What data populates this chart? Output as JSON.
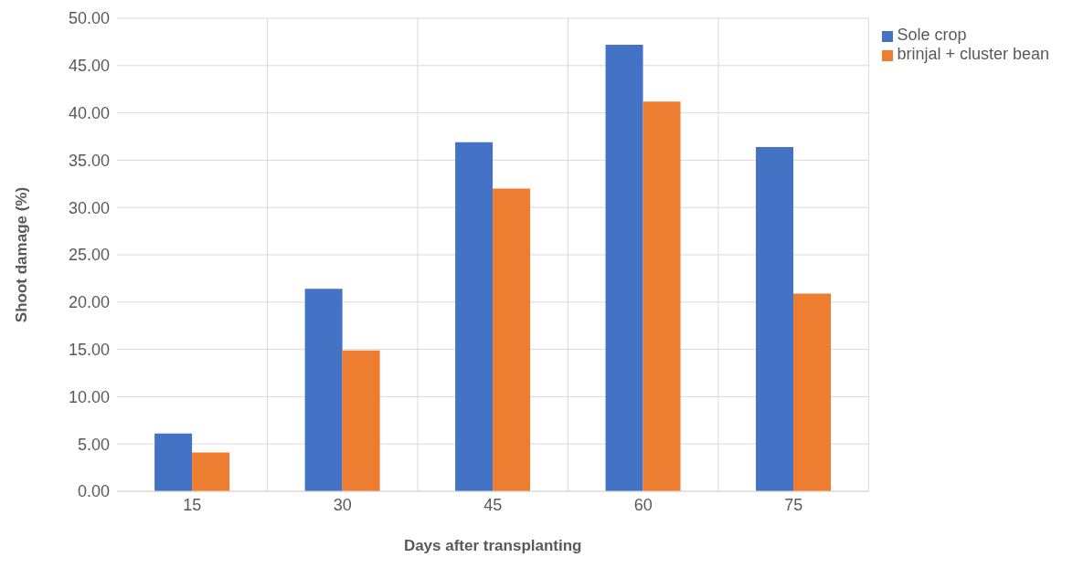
{
  "chart_data": {
    "type": "bar",
    "xlabel": "Days after transplanting",
    "ylabel": "Shoot damage (%)",
    "categories": [
      "15",
      "30",
      "45",
      "60",
      "75"
    ],
    "series": [
      {
        "name": "Sole crop",
        "color": "#4472c4",
        "values": [
          6.1,
          21.4,
          36.9,
          47.2,
          36.4
        ]
      },
      {
        "name": "brinjal + cluster bean",
        "color": "#ed7d31",
        "values": [
          4.1,
          14.9,
          32.0,
          41.2,
          20.9
        ]
      }
    ],
    "ylim": [
      0,
      50
    ],
    "yticks": [
      {
        "value": 0,
        "label": "0.00"
      },
      {
        "value": 5,
        "label": "5.00"
      },
      {
        "value": 10,
        "label": "10.00"
      },
      {
        "value": 15,
        "label": "15.00"
      },
      {
        "value": 20,
        "label": "20.00"
      },
      {
        "value": 25,
        "label": "25.00"
      },
      {
        "value": 30,
        "label": "30.00"
      },
      {
        "value": 35,
        "label": "35.00"
      },
      {
        "value": 40,
        "label": "40.00"
      },
      {
        "value": 45,
        "label": "45.00"
      },
      {
        "value": 50,
        "label": "50.00"
      }
    ],
    "grid": true,
    "legend": "top right"
  }
}
